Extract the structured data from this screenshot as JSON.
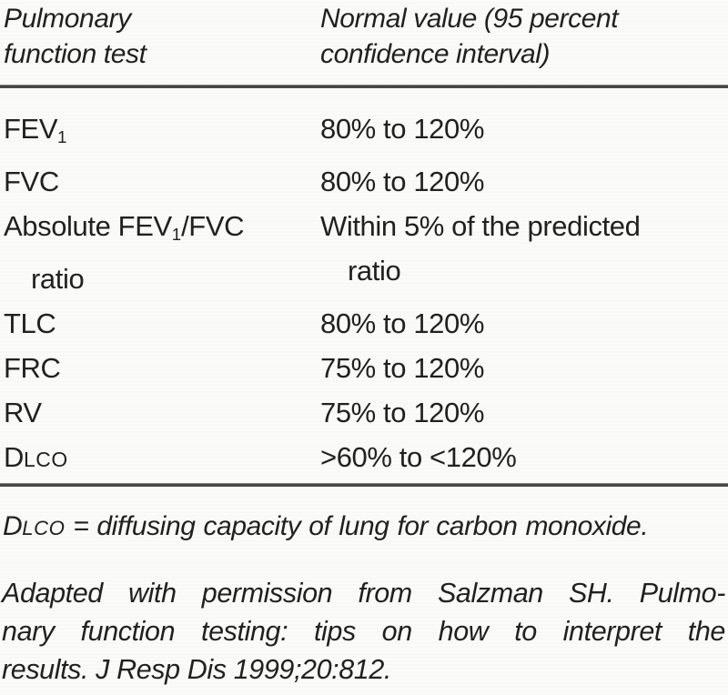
{
  "figure": {
    "type": "scanned-journal-table",
    "table": {
      "header": {
        "col1": "Pulmonary\nfunction test",
        "col2": "Normal value (95 percent\nconfidence interval)"
      },
      "rows": [
        {
          "test": [
            [
              {
                "t": "text",
                "v": "FEV"
              },
              {
                "t": "sub",
                "v": "1"
              }
            ]
          ],
          "value": [
            [
              {
                "t": "text",
                "v": "80% to 120%"
              }
            ]
          ]
        },
        {
          "test": [
            [
              {
                "t": "text",
                "v": "FVC"
              }
            ]
          ],
          "value": [
            [
              {
                "t": "text",
                "v": "80% to 120%"
              }
            ]
          ]
        },
        {
          "test": [
            [
              {
                "t": "text",
                "v": "Absolute FEV"
              },
              {
                "t": "sub",
                "v": "1"
              },
              {
                "t": "text",
                "v": "/FVC"
              }
            ],
            [
              {
                "t": "text",
                "v": "ratio"
              }
            ]
          ],
          "value": [
            [
              {
                "t": "text",
                "v": "Within 5% of the predicted"
              }
            ],
            [
              {
                "t": "text",
                "v": "ratio"
              }
            ]
          ]
        },
        {
          "test": [
            [
              {
                "t": "text",
                "v": "TLC"
              }
            ]
          ],
          "value": [
            [
              {
                "t": "text",
                "v": "80% to 120%"
              }
            ]
          ]
        },
        {
          "test": [
            [
              {
                "t": "text",
                "v": "FRC"
              }
            ]
          ],
          "value": [
            [
              {
                "t": "text",
                "v": "75% to 120%"
              }
            ]
          ]
        },
        {
          "test": [
            [
              {
                "t": "text",
                "v": "RV"
              }
            ]
          ],
          "value": [
            [
              {
                "t": "text",
                "v": "75% to 120%"
              }
            ]
          ]
        },
        {
          "test": [
            [
              {
                "t": "text",
                "v": "D"
              },
              {
                "t": "sc",
                "v": "LCO"
              }
            ]
          ],
          "value": [
            [
              {
                "t": "text",
                "v": ">60% to <120%"
              }
            ]
          ]
        }
      ]
    },
    "footnotes": {
      "abbrev": {
        "prefix": "D",
        "smallcaps": "LCO",
        "rest": " = diffusing capacity of lung for carbon monoxide."
      },
      "citation_lines": [
        "Adapted with permission from Salzman SH. Pulmo-",
        "nary function testing: tips on how to interpret the",
        "results. J Resp Dis 1999;20:812."
      ]
    },
    "colors": {
      "text": "#1f1f1f",
      "rule": "#383838",
      "background": "#fbfbfa"
    }
  }
}
